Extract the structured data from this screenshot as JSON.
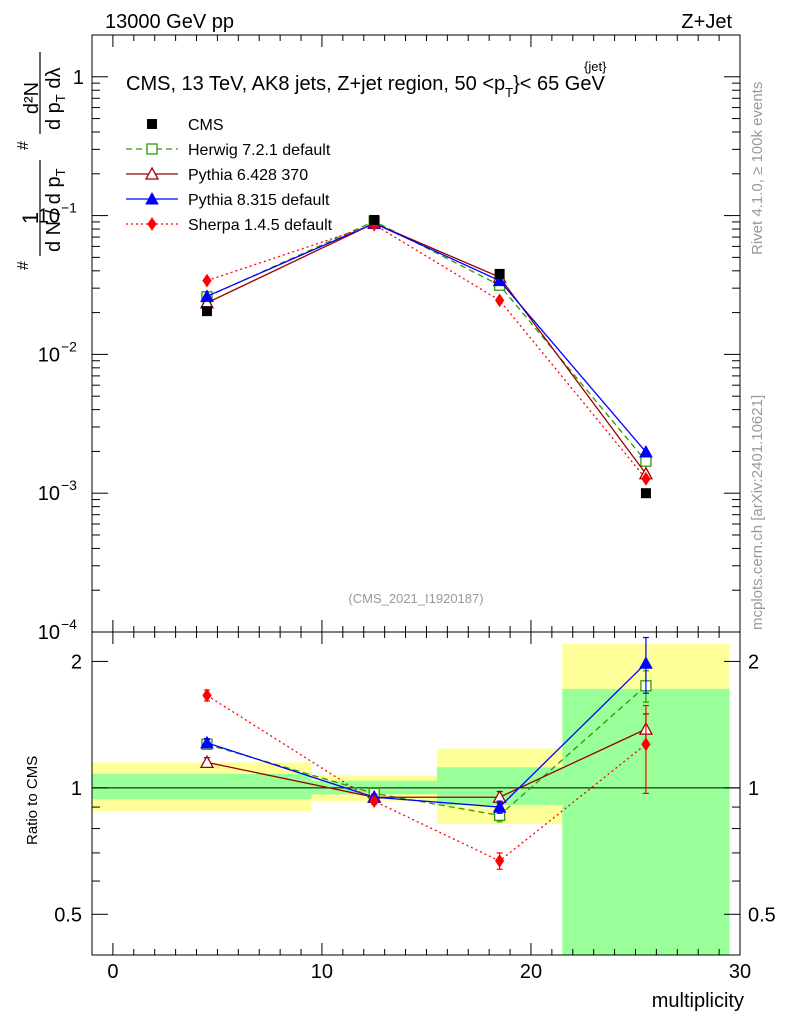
{
  "header": {
    "left": "13000 GeV pp",
    "right": "Z+Jet"
  },
  "side_labels": {
    "top": "Rivet 4.1.0, ≥ 100k events",
    "bottom": "mcplots.cern.ch [arXiv:2401.10621]"
  },
  "watermark": "(CMS_2021_I1920187)",
  "chart_data": {
    "type": "line",
    "title": "CMS, 13 TeV, AK8 jets, Z+jet region, 50 <p",
    "title_sup": "{jet}",
    "title_sub": "T",
    "title_end": "}< 65 GeV",
    "xlabel": "multiplicity",
    "ylabel": "1/N dN/dp_T dλ",
    "ylabel_parts": {
      "frac1_num": "1",
      "frac1_den": "d N / d p",
      "frac1_den_sub": "T",
      "frac2_num": "d²N",
      "frac2_den": "d p",
      "frac2_den_sub": "T",
      "frac2_den_end": " dλ",
      "hash": "#"
    },
    "ratio_ylabel": "Ratio to CMS",
    "xlim": [
      -1,
      30
    ],
    "ylim": [
      0.0001,
      2
    ],
    "ratio_ylim": [
      0.4,
      2.35
    ],
    "x_ticks": [
      0,
      10,
      20,
      30
    ],
    "y_ticks": [
      {
        "label": "1",
        "value": 1
      },
      {
        "label": "10",
        "exp": "−1",
        "value": 0.1
      },
      {
        "label": "10",
        "exp": "−2",
        "value": 0.01
      },
      {
        "label": "10",
        "exp": "−3",
        "value": 0.001
      },
      {
        "label": "10",
        "exp": "−4",
        "value": 0.0001
      }
    ],
    "ratio_ticks": [
      {
        "label": "0.5",
        "value": 0.5
      },
      {
        "label": "1",
        "value": 1
      },
      {
        "label": "2",
        "value": 2
      }
    ],
    "bins": [
      [
        -1,
        9.5
      ],
      [
        9.5,
        15.5
      ],
      [
        15.5,
        21.5
      ],
      [
        21.5,
        29.5
      ]
    ],
    "x": [
      4.5,
      12.5,
      18.5,
      25.5
    ],
    "data": {
      "name": "CMS",
      "values": [
        0.0205,
        0.093,
        0.038,
        0.001
      ]
    },
    "bands": {
      "green": [
        [
          0.94,
          1.08
        ],
        [
          0.965,
          1.04
        ],
        [
          0.91,
          1.12
        ],
        [
          0.35,
          1.72
        ]
      ],
      "yellow": [
        [
          0.88,
          1.15
        ],
        [
          0.93,
          1.07
        ],
        [
          0.82,
          1.24
        ],
        [
          0.35,
          2.2
        ]
      ]
    },
    "series": [
      {
        "name": "Herwig 7.2.1 default",
        "key": "herwig",
        "color": "#339900",
        "dash": "6,4",
        "marker": "open-square",
        "values": [
          0.026,
          0.091,
          0.0315,
          0.0017
        ],
        "ratio": [
          1.27,
          0.97,
          0.86,
          1.75
        ],
        "ratio_err": [
          0.03,
          0.015,
          0.03,
          0.15
        ]
      },
      {
        "name": "Pythia 6.428 370",
        "key": "py6",
        "color": "#990000",
        "dash": "",
        "marker": "open-triangle",
        "values": [
          0.0235,
          0.088,
          0.036,
          0.00138
        ],
        "ratio": [
          1.15,
          0.95,
          0.95,
          1.38
        ],
        "ratio_err": [
          0.03,
          0.015,
          0.03,
          0.12
        ]
      },
      {
        "name": "Pythia 8.315 default",
        "key": "py8",
        "color": "#0000ff",
        "dash": "",
        "marker": "filled-triangle",
        "values": [
          0.0262,
          0.088,
          0.034,
          0.00198
        ],
        "ratio": [
          1.28,
          0.95,
          0.9,
          1.98
        ],
        "ratio_err": [
          0.03,
          0.015,
          0.03,
          0.3
        ]
      },
      {
        "name": "Sherpa 1.4.5 default",
        "key": "sherpa",
        "color": "#ff0000",
        "dash": "2,3",
        "marker": "filled-diamond",
        "values": [
          0.034,
          0.086,
          0.0245,
          0.00127
        ],
        "ratio": [
          1.66,
          0.93,
          0.67,
          1.27
        ],
        "ratio_err": [
          0.05,
          0.015,
          0.03,
          0.3
        ]
      }
    ]
  }
}
